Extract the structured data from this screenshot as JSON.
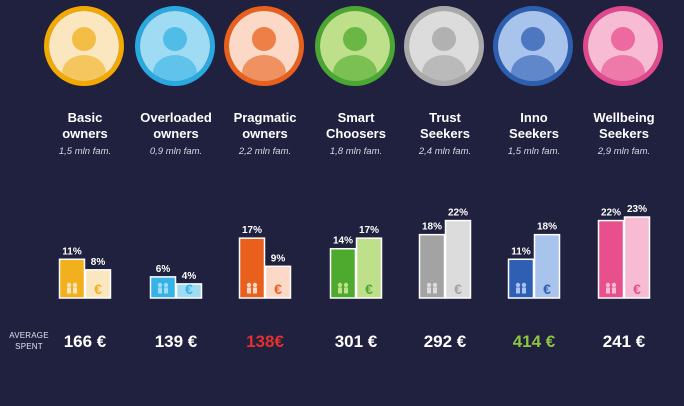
{
  "avg_label_line1": "AVERAGE",
  "avg_label_line2": "SPENT",
  "chart_data": {
    "type": "bar",
    "categories": [
      "Basic owners",
      "Overloaded owners",
      "Pragmatic owners",
      "Smart Choosers",
      "Trust Seekers",
      "Inno Seekers",
      "Wellbeing Seekers"
    ],
    "series": [
      {
        "values": [
          11,
          6,
          17,
          14,
          18,
          11,
          22
        ]
      },
      {
        "values": [
          8,
          4,
          9,
          17,
          22,
          18,
          23
        ]
      }
    ],
    "ylim": [
      0,
      25
    ]
  },
  "segments": [
    {
      "name": "Basic\nowners",
      "families": "1,5 mln fam.",
      "avg_spent": "166 €",
      "ring_color": "#f2a900",
      "colors": [
        "#f2b01e",
        "#fbe7bf"
      ],
      "spent_color": "#ffffff",
      "labels": [
        "11%",
        "8%"
      ],
      "icon_names": [
        "owner-icon",
        "euro-icon"
      ]
    },
    {
      "name": "Overloaded\nowners",
      "families": "0,9 mln fam.",
      "avg_spent": "139 €",
      "ring_color": "#2aa9e0",
      "colors": [
        "#35b3e6",
        "#9fdcf3"
      ],
      "spent_color": "#ffffff",
      "labels": [
        "6%",
        "4%"
      ],
      "icon_names": [
        "owner-icon",
        "euro-icon"
      ]
    },
    {
      "name": "Pragmatic\nowners",
      "families": "2,2 mln fam.",
      "avg_spent": "138€",
      "ring_color": "#e8601c",
      "colors": [
        "#e8601c",
        "#fbd9c6"
      ],
      "spent_color": "#e6302e",
      "labels": [
        "17%",
        "9%"
      ],
      "icon_names": [
        "owner-icon",
        "euro-icon"
      ]
    },
    {
      "name": "Smart\nChoosers",
      "families": "1,8 mln fam.",
      "avg_spent": "301 €",
      "ring_color": "#4aa832",
      "colors": [
        "#4daa2f",
        "#bfe08a"
      ],
      "spent_color": "#ffffff",
      "labels": [
        "14%",
        "17%"
      ],
      "icon_names": [
        "owner-icon",
        "euro-icon"
      ]
    },
    {
      "name": "Trust\nSeekers",
      "families": "2,4 mln fam.",
      "avg_spent": "292 €",
      "ring_color": "#a9a9a9",
      "colors": [
        "#a3a3a3",
        "#dcdcdc"
      ],
      "spent_color": "#ffffff",
      "labels": [
        "18%",
        "22%"
      ],
      "icon_names": [
        "owner-icon",
        "euro-icon"
      ]
    },
    {
      "name": "Inno\nSeekers",
      "families": "1,5 mln fam.",
      "avg_spent": "414 €",
      "ring_color": "#2d5fb0",
      "colors": [
        "#2f5fb3",
        "#a9c4ec"
      ],
      "spent_color": "#8cc63f",
      "labels": [
        "11%",
        "18%"
      ],
      "icon_names": [
        "owner-icon",
        "euro-icon"
      ]
    },
    {
      "name": "Wellbeing\nSeekers",
      "families": "2,9 mln fam.",
      "avg_spent": "241 €",
      "ring_color": "#e04a8c",
      "colors": [
        "#e84f8d",
        "#f7bcd4"
      ],
      "spent_color": "#ffffff",
      "labels": [
        "22%",
        "23%"
      ],
      "icon_names": [
        "owner-icon",
        "euro-icon"
      ]
    }
  ]
}
